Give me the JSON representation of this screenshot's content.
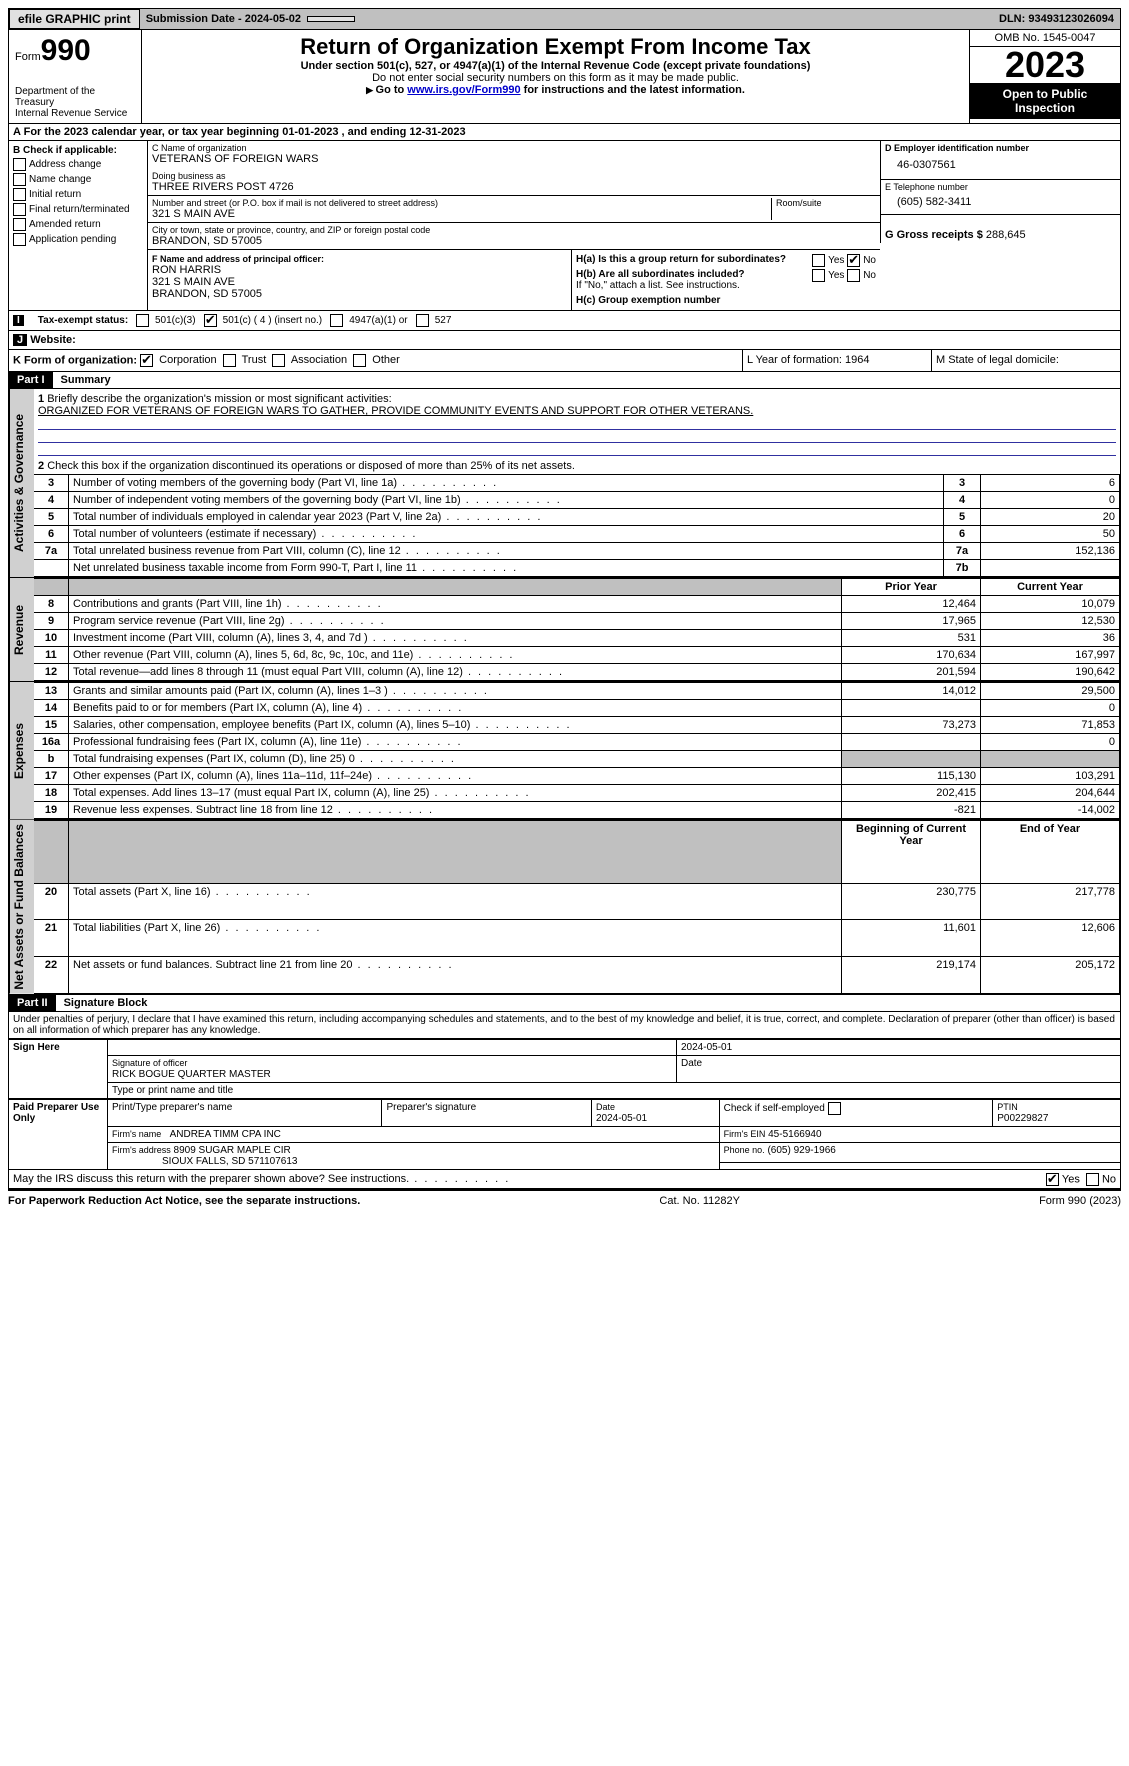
{
  "topbar": {
    "efile": "efile GRAPHIC print",
    "submission_label": "Submission Date - 2024-05-02",
    "dln": "DLN: 93493123026094"
  },
  "header": {
    "form_prefix": "Form",
    "form_number": "990",
    "dept": "Department of the Treasury",
    "irs": "Internal Revenue Service",
    "title": "Return of Organization Exempt From Income Tax",
    "subtitle1": "Under section 501(c), 527, or 4947(a)(1) of the Internal Revenue Code (except private foundations)",
    "subtitle2": "Do not enter social security numbers on this form as it may be made public.",
    "subtitle3_pre": "Go to ",
    "subtitle3_link": "www.irs.gov/Form990",
    "subtitle3_post": " for instructions and the latest information.",
    "omb": "OMB No. 1545-0047",
    "year": "2023",
    "open": "Open to Public Inspection"
  },
  "rowA": "For the 2023 calendar year, or tax year beginning 01-01-2023   , and ending 12-31-2023",
  "boxB": {
    "title": "B Check if applicable:",
    "items": [
      "Address change",
      "Name change",
      "Initial return",
      "Final return/terminated",
      "Amended return",
      "Application pending"
    ]
  },
  "boxC": {
    "name_label": "C Name of organization",
    "name": "VETERANS OF FOREIGN WARS",
    "dba_label": "Doing business as",
    "dba": "THREE RIVERS POST 4726",
    "street_label": "Number and street (or P.O. box if mail is not delivered to street address)",
    "room_label": "Room/suite",
    "street": "321 S MAIN AVE",
    "city_label": "City or town, state or province, country, and ZIP or foreign postal code",
    "city": "BRANDON, SD  57005"
  },
  "boxD": {
    "label": "D Employer identification number",
    "value": "46-0307561"
  },
  "boxE": {
    "label": "E Telephone number",
    "value": "(605) 582-3411"
  },
  "boxG": {
    "label": "G Gross receipts $",
    "value": "288,645"
  },
  "boxF": {
    "label": "F  Name and address of principal officer:",
    "name": "RON HARRIS",
    "street": "321 S MAIN AVE",
    "city": "BRANDON, SD  57005"
  },
  "boxH": {
    "ha": "H(a)  Is this a group return for subordinates?",
    "ha_no_checked": true,
    "hb": "H(b)  Are all subordinates included?",
    "hb_note": "If \"No,\" attach a list. See instructions.",
    "hc": "H(c)  Group exemption number"
  },
  "statusI": {
    "label": "Tax-exempt status:",
    "opts": [
      "501(c)(3)",
      "501(c) ( 4 ) (insert no.)",
      "4947(a)(1) or",
      "527"
    ],
    "checked_index": 1
  },
  "rowJ": {
    "label": "Website:"
  },
  "rowK": {
    "label": "K Form of organization:",
    "opts": [
      "Corporation",
      "Trust",
      "Association",
      "Other"
    ],
    "checked_index": 0,
    "L": "L Year of formation: 1964",
    "M": "M State of legal domicile:"
  },
  "part1": {
    "bar": "Part I",
    "title": "Summary",
    "line1_label": "Briefly describe the organization's mission or most significant activities:",
    "line1_text": "ORGANIZED FOR VETERANS OF FOREIGN WARS TO GATHER, PROVIDE COMMUNITY EVENTS AND SUPPORT FOR OTHER VETERANS.",
    "line2": "Check this box      if the organization discontinued its operations or disposed of more than 25% of its net assets.",
    "gov_rows": [
      {
        "n": "3",
        "t": "Number of voting members of the governing body (Part VI, line 1a)",
        "box": "3",
        "v": "6"
      },
      {
        "n": "4",
        "t": "Number of independent voting members of the governing body (Part VI, line 1b)",
        "box": "4",
        "v": "0"
      },
      {
        "n": "5",
        "t": "Total number of individuals employed in calendar year 2023 (Part V, line 2a)",
        "box": "5",
        "v": "20"
      },
      {
        "n": "6",
        "t": "Total number of volunteers (estimate if necessary)",
        "box": "6",
        "v": "50"
      },
      {
        "n": "7a",
        "t": "Total unrelated business revenue from Part VIII, column (C), line 12",
        "box": "7a",
        "v": "152,136"
      },
      {
        "n": "",
        "t": "Net unrelated business taxable income from Form 990-T, Part I, line 11",
        "box": "7b",
        "v": ""
      }
    ],
    "col_headers": {
      "prior": "Prior Year",
      "current": "Current Year"
    },
    "revenue_rows": [
      {
        "n": "8",
        "t": "Contributions and grants (Part VIII, line 1h)",
        "p": "12,464",
        "c": "10,079"
      },
      {
        "n": "9",
        "t": "Program service revenue (Part VIII, line 2g)",
        "p": "17,965",
        "c": "12,530"
      },
      {
        "n": "10",
        "t": "Investment income (Part VIII, column (A), lines 3, 4, and 7d )",
        "p": "531",
        "c": "36"
      },
      {
        "n": "11",
        "t": "Other revenue (Part VIII, column (A), lines 5, 6d, 8c, 9c, 10c, and 11e)",
        "p": "170,634",
        "c": "167,997"
      },
      {
        "n": "12",
        "t": "Total revenue—add lines 8 through 11 (must equal Part VIII, column (A), line 12)",
        "p": "201,594",
        "c": "190,642"
      }
    ],
    "expense_rows": [
      {
        "n": "13",
        "t": "Grants and similar amounts paid (Part IX, column (A), lines 1–3 )",
        "p": "14,012",
        "c": "29,500"
      },
      {
        "n": "14",
        "t": "Benefits paid to or for members (Part IX, column (A), line 4)",
        "p": "",
        "c": "0"
      },
      {
        "n": "15",
        "t": "Salaries, other compensation, employee benefits (Part IX, column (A), lines 5–10)",
        "p": "73,273",
        "c": "71,853"
      },
      {
        "n": "16a",
        "t": "Professional fundraising fees (Part IX, column (A), line 11e)",
        "p": "",
        "c": "0"
      },
      {
        "n": "b",
        "t": "Total fundraising expenses (Part IX, column (D), line 25) 0",
        "p": "GREY",
        "c": "GREY"
      },
      {
        "n": "17",
        "t": "Other expenses (Part IX, column (A), lines 11a–11d, 11f–24e)",
        "p": "115,130",
        "c": "103,291"
      },
      {
        "n": "18",
        "t": "Total expenses. Add lines 13–17 (must equal Part IX, column (A), line 25)",
        "p": "202,415",
        "c": "204,644"
      },
      {
        "n": "19",
        "t": "Revenue less expenses. Subtract line 18 from line 12",
        "p": "-821",
        "c": "-14,002"
      }
    ],
    "net_headers": {
      "begin": "Beginning of Current Year",
      "end": "End of Year"
    },
    "net_rows": [
      {
        "n": "20",
        "t": "Total assets (Part X, line 16)",
        "p": "230,775",
        "c": "217,778"
      },
      {
        "n": "21",
        "t": "Total liabilities (Part X, line 26)",
        "p": "11,601",
        "c": "12,606"
      },
      {
        "n": "22",
        "t": "Net assets or fund balances. Subtract line 21 from line 20",
        "p": "219,174",
        "c": "205,172"
      }
    ],
    "vtabs": {
      "gov": "Activities & Governance",
      "rev": "Revenue",
      "exp": "Expenses",
      "net": "Net Assets or Fund Balances"
    }
  },
  "part2": {
    "bar": "Part II",
    "title": "Signature Block",
    "penalty": "Under penalties of perjury, I declare that I have examined this return, including accompanying schedules and statements, and to the best of my knowledge and belief, it is true, correct, and complete. Declaration of preparer (other than officer) is based on all information of which preparer has any knowledge.",
    "sign_here": "Sign Here",
    "sig_date": "2024-05-01",
    "sig_officer_label": "Signature of officer",
    "sig_date_label": "Date",
    "officer": "RICK BOGUE  QUARTER MASTER",
    "officer_label": "Type or print name and title",
    "paid": "Paid Preparer Use Only",
    "prep_name_label": "Print/Type preparer's name",
    "prep_sig_label": "Preparer's signature",
    "prep_date_label": "Date",
    "prep_date": "2024-05-01",
    "check_self": "Check       if self-employed",
    "ptin_label": "PTIN",
    "ptin": "P00229827",
    "firm_name_label": "Firm's name",
    "firm_name": "ANDREA TIMM CPA INC",
    "firm_ein_label": "Firm's EIN",
    "firm_ein": "45-5166940",
    "firm_addr_label": "Firm's address",
    "firm_addr1": "8909 SUGAR MAPLE CIR",
    "firm_addr2": "SIOUX FALLS, SD  571107613",
    "phone_label": "Phone no.",
    "phone": "(605) 929-1966",
    "discuss": "May the IRS discuss this return with the preparer shown above? See instructions.",
    "discuss_yes_checked": true
  },
  "footer": {
    "left": "For Paperwork Reduction Act Notice, see the separate instructions.",
    "mid": "Cat. No. 11282Y",
    "right": "Form 990 (2023)"
  }
}
